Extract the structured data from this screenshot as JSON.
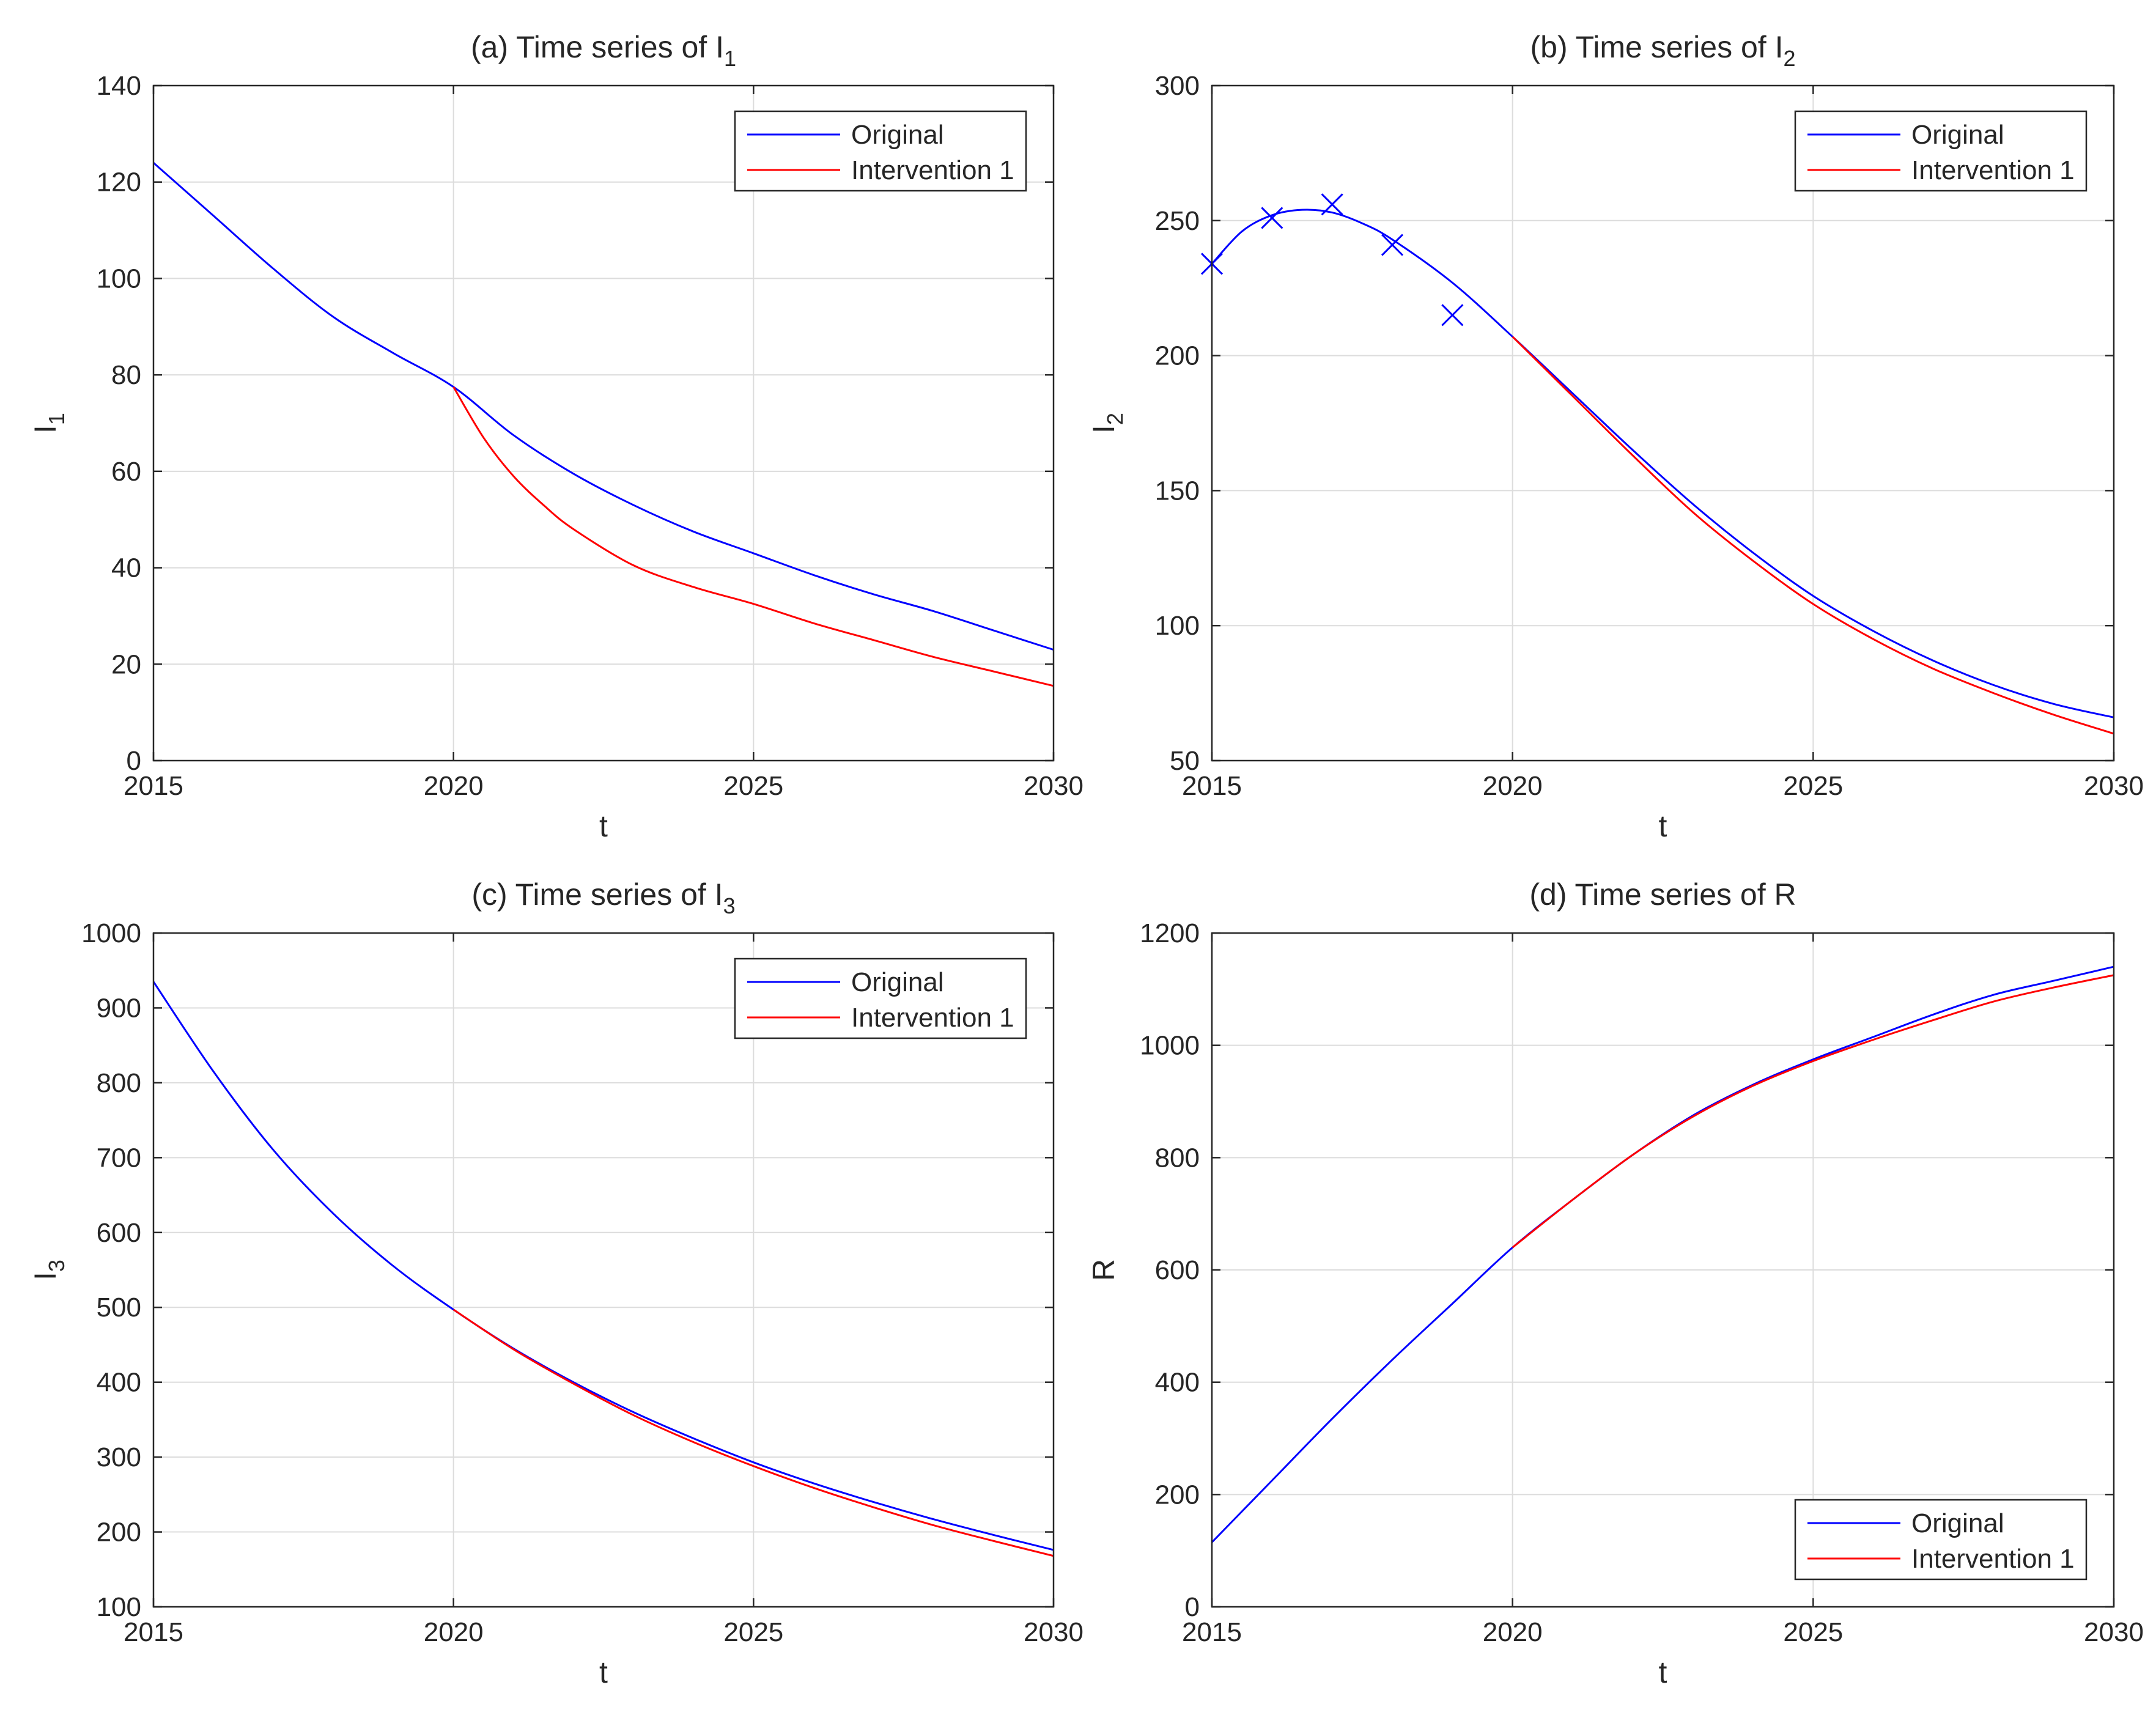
{
  "colors": {
    "original": "#0000ff",
    "intervention": "#ff0000",
    "axis": "#262626",
    "grid": "#dcdcdc"
  },
  "chart_data": [
    {
      "id": "a",
      "type": "line",
      "title_prefix": "(a) Time series of I",
      "title_sub": "1",
      "xlabel": "t",
      "ylabel_main": "I",
      "ylabel_sub": "1",
      "xlim": [
        2015,
        2030
      ],
      "ylim": [
        0,
        140
      ],
      "xticks": [
        2015,
        2020,
        2025,
        2030
      ],
      "yticks": [
        0,
        20,
        40,
        60,
        80,
        100,
        120,
        140
      ],
      "legend_position": "top-right",
      "series": [
        {
          "name": "Original",
          "color": "#0000ff",
          "x": [
            2015,
            2016,
            2017,
            2018,
            2019,
            2020,
            2021,
            2022,
            2023,
            2024,
            2025,
            2026,
            2027,
            2028,
            2029,
            2030
          ],
          "y": [
            124,
            113,
            102,
            92,
            84.5,
            77.5,
            67.5,
            59.5,
            53,
            47.5,
            43,
            38.5,
            34.5,
            31,
            27,
            23
          ]
        },
        {
          "name": "Intervention 1",
          "color": "#ff0000",
          "x": [
            2020,
            2020.5,
            2021,
            2021.5,
            2022,
            2023,
            2024,
            2025,
            2026,
            2027,
            2028,
            2029,
            2030
          ],
          "y": [
            77.5,
            67,
            59,
            53,
            48,
            40.5,
            36,
            32.5,
            28.5,
            25,
            21.5,
            18.5,
            15.5
          ]
        }
      ]
    },
    {
      "id": "b",
      "type": "line",
      "title_prefix": "(b) Time series of I",
      "title_sub": "2",
      "xlabel": "t",
      "ylabel_main": "I",
      "ylabel_sub": "2",
      "xlim": [
        2015,
        2030
      ],
      "ylim": [
        50,
        300
      ],
      "xticks": [
        2015,
        2020,
        2025,
        2030
      ],
      "yticks": [
        50,
        100,
        150,
        200,
        250,
        300
      ],
      "legend_position": "top-right",
      "series": [
        {
          "name": "Original",
          "color": "#0000ff",
          "x": [
            2015,
            2015.5,
            2016,
            2016.5,
            2017,
            2017.5,
            2018,
            2019,
            2020,
            2021,
            2022,
            2023,
            2024,
            2025,
            2026,
            2027,
            2028,
            2029,
            2030
          ],
          "y": [
            234,
            246,
            252,
            254,
            253,
            249,
            243,
            227,
            207,
            186,
            165,
            145,
            127,
            111,
            98,
            87,
            78,
            71,
            66
          ]
        },
        {
          "name": "Intervention 1",
          "color": "#ff0000",
          "x": [
            2020,
            2021,
            2022,
            2023,
            2024,
            2025,
            2026,
            2027,
            2028,
            2029,
            2030
          ],
          "y": [
            207,
            185,
            163,
            142,
            124,
            108,
            95,
            84,
            75,
            67,
            60
          ]
        }
      ],
      "observations": {
        "color": "#0000ff",
        "x": [
          2015,
          2016,
          2017,
          2018,
          2019
        ],
        "y": [
          234,
          251,
          256,
          241,
          215
        ]
      }
    },
    {
      "id": "c",
      "type": "line",
      "title_prefix": "(c) Time series of I",
      "title_sub": "3",
      "xlabel": "t",
      "ylabel_main": "I",
      "ylabel_sub": "3",
      "xlim": [
        2015,
        2030
      ],
      "ylim": [
        100,
        1000
      ],
      "xticks": [
        2015,
        2020,
        2025,
        2030
      ],
      "yticks": [
        100,
        200,
        300,
        400,
        500,
        600,
        700,
        800,
        900,
        1000
      ],
      "legend_position": "top-right",
      "series": [
        {
          "name": "Original",
          "color": "#0000ff",
          "x": [
            2015,
            2016,
            2017,
            2018,
            2019,
            2020,
            2021,
            2022,
            2023,
            2024,
            2025,
            2026,
            2027,
            2028,
            2029,
            2030
          ],
          "y": [
            935,
            815,
            710,
            625,
            555,
            497,
            445,
            400,
            360,
            325,
            293,
            265,
            240,
            217,
            196,
            176
          ]
        },
        {
          "name": "Intervention 1",
          "color": "#ff0000",
          "x": [
            2020,
            2021,
            2022,
            2023,
            2024,
            2025,
            2026,
            2027,
            2028,
            2029,
            2030
          ],
          "y": [
            497,
            444,
            398,
            356,
            320,
            288,
            259,
            233,
            209,
            188,
            168
          ]
        }
      ]
    },
    {
      "id": "d",
      "type": "line",
      "title_prefix": "(d) Time series of R",
      "title_sub": "",
      "xlabel": "t",
      "ylabel_main": "R",
      "ylabel_sub": "",
      "xlim": [
        2015,
        2030
      ],
      "ylim": [
        0,
        1200
      ],
      "xticks": [
        2015,
        2020,
        2025,
        2030
      ],
      "yticks": [
        0,
        200,
        400,
        600,
        800,
        1000,
        1200
      ],
      "legend_position": "bottom-right",
      "series": [
        {
          "name": "Original",
          "color": "#0000ff",
          "x": [
            2015,
            2016,
            2017,
            2018,
            2019,
            2020,
            2021,
            2022,
            2023,
            2024,
            2025,
            2026,
            2027,
            2028,
            2029,
            2030
          ],
          "y": [
            115,
            225,
            335,
            440,
            540,
            640,
            725,
            805,
            875,
            930,
            975,
            1015,
            1055,
            1090,
            1115,
            1140
          ]
        },
        {
          "name": "Intervention 1",
          "color": "#ff0000",
          "x": [
            2020,
            2021,
            2022,
            2023,
            2024,
            2025,
            2026,
            2027,
            2028,
            2029,
            2030
          ],
          "y": [
            640,
            725,
            805,
            873,
            928,
            972,
            1010,
            1045,
            1078,
            1103,
            1125
          ]
        }
      ]
    }
  ]
}
